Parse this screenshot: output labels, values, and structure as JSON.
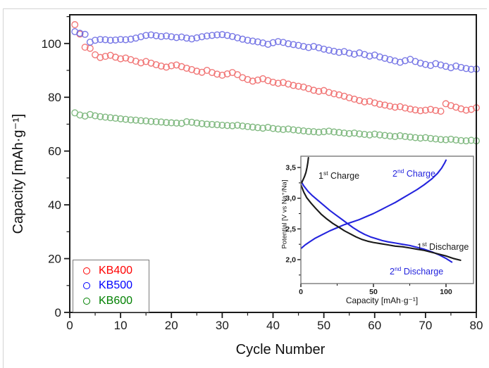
{
  "figure": {
    "background": "#ffffff",
    "outer_rule_color": "#d4d4d4"
  },
  "chart_data": {
    "main": {
      "type": "scatter",
      "title": "",
      "xlabel": "Cycle Number",
      "ylabel": "Capacity [mAh·g⁻¹]",
      "xlim": [
        0,
        80
      ],
      "ylim": [
        0,
        110
      ],
      "grid": false,
      "legend_position": "bottom-left",
      "x_ticks": [
        0,
        10,
        20,
        30,
        40,
        50,
        60,
        70,
        80
      ],
      "x_tick_labels": [
        "0",
        "10",
        "20",
        "30",
        "40",
        "50",
        "60",
        "70",
        "80"
      ],
      "x_minor_ticks": [
        5,
        15,
        25,
        35,
        45,
        55,
        65,
        75
      ],
      "y_ticks": [
        0,
        20,
        40,
        60,
        80,
        100
      ],
      "y_tick_labels": [
        "0",
        "20",
        "40",
        "60",
        "80",
        "100"
      ],
      "y_minor_ticks": [
        10,
        30,
        50,
        70,
        90,
        110
      ],
      "x_start_cycle": 1,
      "series": [
        {
          "name": "KB400",
          "marker": "open-circle",
          "color": "#ef6060",
          "label_color": "#ff0000",
          "values": [
            107.0,
            103.5,
            98.6,
            98.2,
            95.8,
            94.8,
            95.2,
            95.6,
            94.9,
            94.3,
            94.6,
            94.0,
            93.4,
            92.8,
            93.3,
            92.7,
            92.1,
            91.6,
            91.2,
            91.7,
            92.0,
            91.4,
            90.8,
            90.3,
            89.7,
            89.3,
            90.0,
            89.2,
            88.6,
            88.2,
            88.7,
            89.2,
            88.4,
            87.3,
            86.6,
            86.0,
            86.4,
            86.9,
            86.2,
            85.6,
            85.2,
            85.5,
            84.9,
            84.4,
            84.1,
            83.8,
            83.2,
            82.6,
            82.2,
            82.5,
            81.8,
            81.3,
            80.9,
            80.4,
            79.8,
            79.3,
            78.8,
            78.3,
            78.5,
            77.9,
            77.4,
            77.1,
            76.7,
            76.3,
            76.5,
            76.0,
            75.6,
            75.3,
            75.0,
            75.2,
            75.5,
            75.1,
            74.8,
            77.6,
            76.9,
            76.3,
            75.7,
            75.2,
            75.5,
            76.1
          ]
        },
        {
          "name": "KB500",
          "marker": "open-circle",
          "color": "#6262e2",
          "label_color": "#0000ff",
          "values": [
            104.4,
            103.8,
            103.4,
            100.5,
            101.2,
            101.5,
            101.4,
            101.2,
            101.3,
            101.5,
            101.4,
            101.6,
            102.0,
            102.5,
            103.0,
            103.2,
            102.9,
            102.6,
            102.8,
            102.5,
            102.2,
            102.4,
            102.0,
            101.7,
            102.1,
            102.5,
            102.8,
            103.0,
            103.2,
            103.3,
            103.0,
            102.6,
            102.1,
            101.6,
            101.2,
            100.9,
            100.6,
            100.2,
            99.7,
            100.3,
            100.7,
            100.4,
            99.9,
            99.6,
            99.3,
            98.9,
            98.5,
            98.9,
            98.4,
            97.9,
            97.5,
            97.1,
            96.7,
            97.0,
            96.4,
            96.0,
            96.5,
            95.9,
            95.3,
            95.7,
            95.0,
            94.5,
            94.0,
            93.5,
            93.0,
            93.6,
            94.1,
            93.3,
            92.7,
            92.2,
            91.8,
            92.5,
            92.0,
            91.5,
            91.0,
            91.6,
            91.1,
            90.7,
            90.4,
            90.5
          ]
        },
        {
          "name": "KB600",
          "marker": "open-circle",
          "color": "#6dae6d",
          "label_color": "#008000",
          "values": [
            74.2,
            73.4,
            73.0,
            73.6,
            73.1,
            72.8,
            72.6,
            72.4,
            72.2,
            72.0,
            71.8,
            71.6,
            71.5,
            71.3,
            71.2,
            71.0,
            70.9,
            70.8,
            70.6,
            70.5,
            70.4,
            70.3,
            70.9,
            70.7,
            70.4,
            70.2,
            70.0,
            69.9,
            69.8,
            69.6,
            69.5,
            69.4,
            69.6,
            69.3,
            69.1,
            68.9,
            68.7,
            68.5,
            68.8,
            68.4,
            68.2,
            68.0,
            68.2,
            67.9,
            67.7,
            67.5,
            67.3,
            67.2,
            67.0,
            67.2,
            67.4,
            67.1,
            66.9,
            66.7,
            66.5,
            66.7,
            66.4,
            66.2,
            66.0,
            66.3,
            66.0,
            65.8,
            65.6,
            65.4,
            65.7,
            65.4,
            65.2,
            65.0,
            64.8,
            65.0,
            64.7,
            64.5,
            64.3,
            64.2,
            64.4,
            64.1,
            63.9,
            63.8,
            64.0,
            63.8
          ]
        }
      ]
    },
    "inset": {
      "type": "line",
      "title": "",
      "xlabel": "Capacity [mAh·g⁻¹]",
      "ylabel": "Potential [V vs Na⁺/Na]",
      "xlim": [
        0,
        119
      ],
      "ylim": [
        1.6,
        3.68
      ],
      "grid": false,
      "x_ticks": [
        0,
        50,
        100
      ],
      "x_tick_labels": [
        "0",
        "50",
        "100"
      ],
      "x_minor_ticks": [
        25,
        75
      ],
      "y_ticks": [
        2.0,
        2.5,
        3.0,
        3.5
      ],
      "y_tick_labels": [
        "2,0",
        "2,5",
        "3,0",
        "3,5"
      ],
      "y_minor_ticks": [
        1.75,
        2.25,
        2.75,
        3.25
      ],
      "series": [
        {
          "name": "2nd Charge",
          "color": "#2424dd",
          "points": [
            [
              0,
              2.18
            ],
            [
              3,
              2.24
            ],
            [
              6,
              2.29
            ],
            [
              10,
              2.35
            ],
            [
              15,
              2.41
            ],
            [
              20,
              2.47
            ],
            [
              25,
              2.52
            ],
            [
              30,
              2.57
            ],
            [
              35,
              2.61
            ],
            [
              40,
              2.65
            ],
            [
              45,
              2.7
            ],
            [
              50,
              2.75
            ],
            [
              55,
              2.81
            ],
            [
              60,
              2.87
            ],
            [
              65,
              2.93
            ],
            [
              70,
              3.0
            ],
            [
              75,
              3.07
            ],
            [
              80,
              3.14
            ],
            [
              85,
              3.22
            ],
            [
              90,
              3.31
            ],
            [
              94,
              3.4
            ],
            [
              97,
              3.49
            ],
            [
              99,
              3.57
            ],
            [
              100,
              3.62
            ]
          ]
        },
        {
          "name": "2nd Discharge",
          "color": "#2424dd",
          "points": [
            [
              0,
              3.28
            ],
            [
              2,
              3.2
            ],
            [
              5,
              3.11
            ],
            [
              8,
              3.04
            ],
            [
              12,
              2.96
            ],
            [
              16,
              2.88
            ],
            [
              20,
              2.8
            ],
            [
              24,
              2.73
            ],
            [
              28,
              2.66
            ],
            [
              32,
              2.59
            ],
            [
              36,
              2.52
            ],
            [
              40,
              2.46
            ],
            [
              44,
              2.41
            ],
            [
              48,
              2.37
            ],
            [
              52,
              2.34
            ],
            [
              56,
              2.31
            ],
            [
              60,
              2.29
            ],
            [
              65,
              2.27
            ],
            [
              70,
              2.25
            ],
            [
              75,
              2.23
            ],
            [
              80,
              2.2
            ],
            [
              85,
              2.17
            ],
            [
              90,
              2.13
            ],
            [
              95,
              2.08
            ],
            [
              100,
              2.02
            ],
            [
              104,
              1.96
            ]
          ]
        },
        {
          "name": "1st Charge",
          "color": "#1a1a1a",
          "points": [
            [
              0.5,
              3.25
            ],
            [
              1.5,
              3.3
            ],
            [
              2.5,
              3.35
            ],
            [
              3.5,
              3.42
            ],
            [
              4.2,
              3.5
            ],
            [
              4.8,
              3.58
            ],
            [
              5.2,
              3.66
            ]
          ]
        },
        {
          "name": "1st Discharge",
          "color": "#1a1a1a",
          "points": [
            [
              0,
              3.22
            ],
            [
              2,
              3.1
            ],
            [
              4,
              3.01
            ],
            [
              7,
              2.92
            ],
            [
              10,
              2.84
            ],
            [
              14,
              2.74
            ],
            [
              18,
              2.66
            ],
            [
              22,
              2.59
            ],
            [
              26,
              2.53
            ],
            [
              30,
              2.47
            ],
            [
              34,
              2.42
            ],
            [
              38,
              2.37
            ],
            [
              42,
              2.33
            ],
            [
              46,
              2.3
            ],
            [
              50,
              2.28
            ],
            [
              55,
              2.26
            ],
            [
              60,
              2.24
            ],
            [
              65,
              2.22
            ],
            [
              70,
              2.21
            ],
            [
              75,
              2.19
            ],
            [
              80,
              2.17
            ],
            [
              85,
              2.15
            ],
            [
              90,
              2.12
            ],
            [
              95,
              2.09
            ],
            [
              100,
              2.06
            ],
            [
              105,
              2.02
            ],
            [
              110,
              1.99
            ]
          ]
        }
      ],
      "annotations": [
        {
          "num": "1",
          "sup": "st",
          "rest": " Charge",
          "color": "#1a1a1a"
        },
        {
          "num": "2",
          "sup": "nd",
          "rest": " Charge",
          "color": "#2424dd"
        },
        {
          "num": "1",
          "sup": "st",
          "rest": " Discharge",
          "color": "#1a1a1a"
        },
        {
          "num": "2",
          "sup": "nd",
          "rest": " Discharge",
          "color": "#2424dd"
        }
      ]
    }
  }
}
